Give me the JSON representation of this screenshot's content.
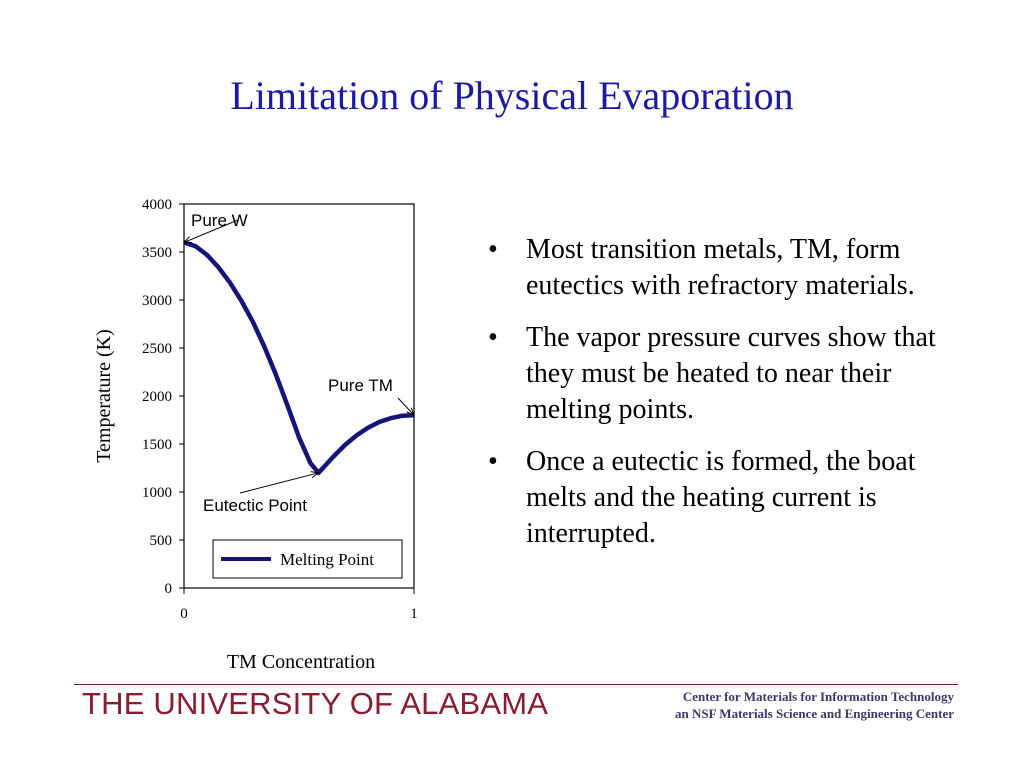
{
  "slide": {
    "title": "Limitation of Physical Evaporation",
    "bullets": [
      "Most transition metals, TM, form eutectics with refractory materials.",
      "The vapor pressure curves show that they must be heated to near their melting points.",
      "Once a eutectic is formed, the boat melts and the heating current is interrupted."
    ],
    "bullet_symbol": "•"
  },
  "footer": {
    "university": "THE UNIVERSITY OF ALABAMA",
    "center_line1": "Center for Materials for Information Technology",
    "center_line2": "an NSF Materials Science and Engineering Center",
    "brand_color": "#8b1b2e"
  },
  "chart_data": {
    "type": "line",
    "xlabel": "TM Concentration",
    "ylabel": "Temperature (K)",
    "xlim": [
      0,
      1
    ],
    "ylim": [
      0,
      4000
    ],
    "xticks": [
      0,
      1
    ],
    "yticks": [
      0,
      500,
      1000,
      1500,
      2000,
      2500,
      3000,
      3500,
      4000
    ],
    "series": [
      {
        "name": "Melting Point",
        "color": "#14147a",
        "x": [
          0,
          0.05,
          0.1,
          0.15,
          0.2,
          0.25,
          0.3,
          0.35,
          0.4,
          0.45,
          0.5,
          0.55,
          0.585,
          0.65,
          0.7,
          0.75,
          0.8,
          0.85,
          0.9,
          0.95,
          1.0
        ],
        "y": [
          3600,
          3560,
          3470,
          3340,
          3180,
          2990,
          2770,
          2510,
          2220,
          1900,
          1570,
          1300,
          1200,
          1370,
          1490,
          1590,
          1670,
          1730,
          1770,
          1795,
          1800
        ]
      }
    ],
    "annotations": [
      {
        "text": "Pure W",
        "x": 0,
        "y": 3600
      },
      {
        "text": "Pure TM",
        "x": 1,
        "y": 1800
      },
      {
        "text": "Eutectic Point",
        "x": 0.585,
        "y": 1200
      }
    ],
    "legend": "bottom-right",
    "grid": false
  }
}
